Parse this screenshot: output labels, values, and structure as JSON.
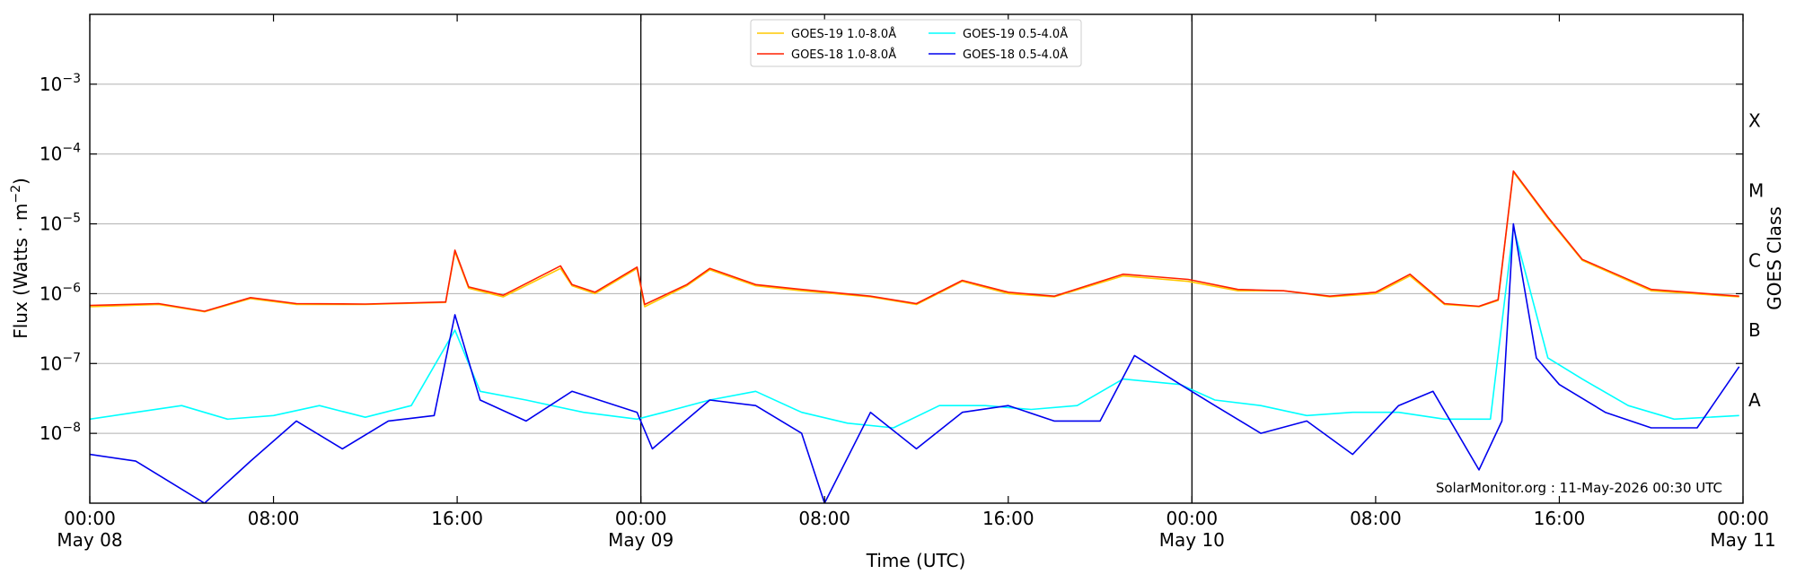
{
  "chart_data": {
    "type": "line",
    "title": "",
    "xlabel": "Time (UTC)",
    "ylabel_main": "Flux (Watts · m",
    "ylabel_sup": "−2",
    "ylabel_close": ")",
    "y2label": "GOES Class",
    "yscale": "log",
    "ylim": [
      1e-09,
      0.01
    ],
    "xlim": [
      "2026-05-08T00:00",
      "2026-05-11T00:00"
    ],
    "grid": true,
    "legend_position": "top-center",
    "credit": "SolarMonitor.org : 11-May-2026 00:30 UTC",
    "y_ticks": [
      {
        "value": 1e-08,
        "base": "10",
        "exp": "−8"
      },
      {
        "value": 1e-07,
        "base": "10",
        "exp": "−7"
      },
      {
        "value": 1e-06,
        "base": "10",
        "exp": "−6"
      },
      {
        "value": 1e-05,
        "base": "10",
        "exp": "−5"
      },
      {
        "value": 0.0001,
        "base": "10",
        "exp": "−4"
      },
      {
        "value": 0.001,
        "base": "10",
        "exp": "−3"
      }
    ],
    "x_ticks": [
      {
        "time": "2026-05-08T00:00",
        "line1": "00:00",
        "line2": "May 08"
      },
      {
        "time": "2026-05-08T08:00",
        "line1": "08:00",
        "line2": ""
      },
      {
        "time": "2026-05-08T16:00",
        "line1": "16:00",
        "line2": ""
      },
      {
        "time": "2026-05-09T00:00",
        "line1": "00:00",
        "line2": "May 09"
      },
      {
        "time": "2026-05-09T08:00",
        "line1": "08:00",
        "line2": ""
      },
      {
        "time": "2026-05-09T16:00",
        "line1": "16:00",
        "line2": ""
      },
      {
        "time": "2026-05-10T00:00",
        "line1": "00:00",
        "line2": "May 10"
      },
      {
        "time": "2026-05-10T08:00",
        "line1": "08:00",
        "line2": ""
      },
      {
        "time": "2026-05-10T16:00",
        "line1": "16:00",
        "line2": ""
      },
      {
        "time": "2026-05-11T00:00",
        "line1": "00:00",
        "line2": "May 11"
      }
    ],
    "day_boundaries": [
      "2026-05-09T00:00",
      "2026-05-10T00:00"
    ],
    "goes_classes": [
      {
        "label": "A",
        "flux": 3e-08
      },
      {
        "label": "B",
        "flux": 3e-07
      },
      {
        "label": "C",
        "flux": 3e-06
      },
      {
        "label": "M",
        "flux": 3e-05
      },
      {
        "label": "X",
        "flux": 0.0003
      }
    ],
    "series": [
      {
        "name": "GOES-19 1.0-8.0",
        "unit": "Å",
        "color": "#ffc800",
        "x": [
          "2026-05-08T00:00",
          "2026-05-08T03:00",
          "2026-05-08T05:00",
          "2026-05-08T07:00",
          "2026-05-08T09:00",
          "2026-05-08T12:00",
          "2026-05-08T15:30",
          "2026-05-08T15:54",
          "2026-05-08T16:30",
          "2026-05-08T18:00",
          "2026-05-08T20:30",
          "2026-05-08T21:00",
          "2026-05-08T22:00",
          "2026-05-08T23:50",
          "2026-05-09T00:10",
          "2026-05-09T02:00",
          "2026-05-09T03:00",
          "2026-05-09T05:00",
          "2026-05-09T07:00",
          "2026-05-09T10:00",
          "2026-05-09T12:00",
          "2026-05-09T14:00",
          "2026-05-09T16:00",
          "2026-05-09T18:00",
          "2026-05-09T21:00",
          "2026-05-09T23:50",
          "2026-05-10T02:00",
          "2026-05-10T04:00",
          "2026-05-10T06:00",
          "2026-05-10T08:00",
          "2026-05-10T09:30",
          "2026-05-10T11:00",
          "2026-05-10T12:30",
          "2026-05-10T13:20",
          "2026-05-10T14:00",
          "2026-05-10T15:30",
          "2026-05-10T17:00",
          "2026-05-10T20:00",
          "2026-05-10T23:50"
        ],
        "values": [
          6.5e-07,
          7e-07,
          5.5e-07,
          8.5e-07,
          7e-07,
          7e-07,
          7.5e-07,
          4e-06,
          1.2e-06,
          9e-07,
          2.3e-06,
          1.3e-06,
          1e-06,
          2.3e-06,
          6.5e-07,
          1.3e-06,
          2.2e-06,
          1.3e-06,
          1.1e-06,
          9e-07,
          7e-07,
          1.5e-06,
          1e-06,
          9e-07,
          1.8e-06,
          1.5e-06,
          1.1e-06,
          1.1e-06,
          9e-07,
          1e-06,
          1.8e-06,
          7e-07,
          6.5e-07,
          8e-07,
          5.5e-05,
          1.2e-05,
          3e-06,
          1.1e-06,
          9e-07
        ]
      },
      {
        "name": "GOES-18 1.0-8.0",
        "unit": "Å",
        "color": "#ff2000",
        "x": [
          "2026-05-08T00:00",
          "2026-05-08T03:00",
          "2026-05-08T05:00",
          "2026-05-08T07:00",
          "2026-05-08T09:00",
          "2026-05-08T12:00",
          "2026-05-08T15:30",
          "2026-05-08T15:54",
          "2026-05-08T16:30",
          "2026-05-08T18:00",
          "2026-05-08T20:30",
          "2026-05-08T21:00",
          "2026-05-08T22:00",
          "2026-05-08T23:50",
          "2026-05-09T00:10",
          "2026-05-09T02:00",
          "2026-05-09T03:00",
          "2026-05-09T05:00",
          "2026-05-09T07:00",
          "2026-05-09T10:00",
          "2026-05-09T12:00",
          "2026-05-09T14:00",
          "2026-05-09T16:00",
          "2026-05-09T18:00",
          "2026-05-09T21:00",
          "2026-05-09T23:50",
          "2026-05-10T02:00",
          "2026-05-10T04:00",
          "2026-05-10T06:00",
          "2026-05-10T08:00",
          "2026-05-10T09:30",
          "2026-05-10T11:00",
          "2026-05-10T12:30",
          "2026-05-10T13:20",
          "2026-05-10T14:00",
          "2026-05-10T15:30",
          "2026-05-10T17:00",
          "2026-05-10T20:00",
          "2026-05-10T23:50"
        ],
        "values": [
          6.8e-07,
          7.2e-07,
          5.6e-07,
          8.8e-07,
          7.2e-07,
          7.1e-07,
          7.6e-07,
          4.2e-06,
          1.25e-06,
          9.5e-07,
          2.5e-06,
          1.35e-06,
          1.05e-06,
          2.4e-06,
          7e-07,
          1.35e-06,
          2.3e-06,
          1.35e-06,
          1.15e-06,
          9.2e-07,
          7.2e-07,
          1.55e-06,
          1.05e-06,
          9.2e-07,
          1.9e-06,
          1.6e-06,
          1.15e-06,
          1.1e-06,
          9.2e-07,
          1.05e-06,
          1.9e-06,
          7.2e-07,
          6.6e-07,
          8.2e-07,
          5.7e-05,
          1.25e-05,
          3.1e-06,
          1.15e-06,
          9.2e-07
        ]
      },
      {
        "name": "GOES-19 0.5-4.0",
        "unit": "Å",
        "color": "#00ffff",
        "x": [
          "2026-05-08T00:00",
          "2026-05-08T02:00",
          "2026-05-08T04:00",
          "2026-05-08T06:00",
          "2026-05-08T08:00",
          "2026-05-08T10:00",
          "2026-05-08T12:00",
          "2026-05-08T14:00",
          "2026-05-08T15:54",
          "2026-05-08T17:00",
          "2026-05-08T19:00",
          "2026-05-08T21:30",
          "2026-05-08T23:50",
          "2026-05-09T01:00",
          "2026-05-09T03:00",
          "2026-05-09T05:00",
          "2026-05-09T07:00",
          "2026-05-09T09:00",
          "2026-05-09T11:00",
          "2026-05-09T13:00",
          "2026-05-09T15:00",
          "2026-05-09T17:00",
          "2026-05-09T19:00",
          "2026-05-09T21:00",
          "2026-05-09T23:30",
          "2026-05-10T01:00",
          "2026-05-10T03:00",
          "2026-05-10T05:00",
          "2026-05-10T07:00",
          "2026-05-10T09:00",
          "2026-05-10T11:00",
          "2026-05-10T13:00",
          "2026-05-10T14:00",
          "2026-05-10T15:30",
          "2026-05-10T17:00",
          "2026-05-10T19:00",
          "2026-05-10T21:00",
          "2026-05-10T23:50"
        ],
        "values": [
          1.6e-08,
          2e-08,
          2.5e-08,
          1.6e-08,
          1.8e-08,
          2.5e-08,
          1.7e-08,
          2.5e-08,
          3e-07,
          4e-08,
          3e-08,
          2e-08,
          1.6e-08,
          2e-08,
          3e-08,
          4e-08,
          2e-08,
          1.4e-08,
          1.2e-08,
          2.5e-08,
          2.5e-08,
          2.2e-08,
          2.5e-08,
          6e-08,
          5e-08,
          3e-08,
          2.5e-08,
          1.8e-08,
          2e-08,
          2e-08,
          1.6e-08,
          1.6e-08,
          9e-06,
          1.2e-07,
          6e-08,
          2.5e-08,
          1.6e-08,
          1.8e-08
        ]
      },
      {
        "name": "GOES-18 0.5-4.0",
        "unit": "Å",
        "color": "#0000ee",
        "x": [
          "2026-05-08T00:00",
          "2026-05-08T02:00",
          "2026-05-08T03:30",
          "2026-05-08T05:00",
          "2026-05-08T07:00",
          "2026-05-08T09:00",
          "2026-05-08T11:00",
          "2026-05-08T13:00",
          "2026-05-08T15:00",
          "2026-05-08T15:54",
          "2026-05-08T17:00",
          "2026-05-08T19:00",
          "2026-05-08T21:00",
          "2026-05-08T23:50",
          "2026-05-09T00:30",
          "2026-05-09T03:00",
          "2026-05-09T05:00",
          "2026-05-09T07:00",
          "2026-05-09T08:00",
          "2026-05-09T10:00",
          "2026-05-09T12:00",
          "2026-05-09T14:00",
          "2026-05-09T16:00",
          "2026-05-09T18:00",
          "2026-05-09T20:00",
          "2026-05-09T21:30",
          "2026-05-09T23:30",
          "2026-05-10T01:00",
          "2026-05-10T03:00",
          "2026-05-10T05:00",
          "2026-05-10T07:00",
          "2026-05-10T09:00",
          "2026-05-10T10:30",
          "2026-05-10T12:30",
          "2026-05-10T13:30",
          "2026-05-10T14:00",
          "2026-05-10T15:00",
          "2026-05-10T16:00",
          "2026-05-10T18:00",
          "2026-05-10T20:00",
          "2026-05-10T22:00",
          "2026-05-10T23:50"
        ],
        "values": [
          5e-09,
          4e-09,
          2e-09,
          1e-09,
          4e-09,
          1.5e-08,
          6e-09,
          1.5e-08,
          1.8e-08,
          5e-07,
          3e-08,
          1.5e-08,
          4e-08,
          2e-08,
          6e-09,
          3e-08,
          2.5e-08,
          1e-08,
          1e-09,
          2e-08,
          6e-09,
          2e-08,
          2.5e-08,
          1.5e-08,
          1.5e-08,
          1.3e-07,
          5e-08,
          2.5e-08,
          1e-08,
          1.5e-08,
          5e-09,
          2.5e-08,
          4e-08,
          3e-09,
          1.5e-08,
          1e-05,
          1.2e-07,
          5e-08,
          2e-08,
          1.2e-08,
          1.2e-08,
          9e-08
        ]
      }
    ]
  }
}
